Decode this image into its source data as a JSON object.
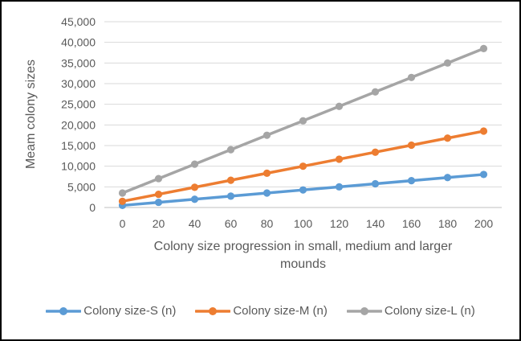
{
  "window": {
    "background_color": "#FFFFFF",
    "border_color": "#000000"
  },
  "chart_data": {
    "type": "line",
    "title": "",
    "xlabel": "Colony size progression in small, medium and larger mounds",
    "ylabel": "Meam colony sizes",
    "x_tick_labels": [
      "0",
      "20",
      "40",
      "60",
      "80",
      "100",
      "120",
      "140",
      "160",
      "180",
      "200"
    ],
    "y_tick_labels": [
      "0",
      "5,000",
      "10,000",
      "15,000",
      "20,000",
      "25,000",
      "30,000",
      "35,000",
      "40,000",
      "45,000"
    ],
    "ylim": [
      0,
      45000
    ],
    "ytick_step": 5000,
    "grid": true,
    "legend_position": "bottom",
    "categories": [
      0,
      20,
      40,
      60,
      80,
      100,
      120,
      140,
      160,
      180,
      200
    ],
    "series": [
      {
        "name": "Colony size-S (n)",
        "color": "#5B9BD5",
        "values": [
          500,
          1250,
          2000,
          2750,
          3500,
          4250,
          5000,
          5750,
          6500,
          7250,
          8000
        ]
      },
      {
        "name": "Colony size-M (n)",
        "color": "#ED7D31",
        "values": [
          1500,
          3200,
          4900,
          6600,
          8300,
          10000,
          11700,
          13400,
          15100,
          16800,
          18500
        ]
      },
      {
        "name": "Colony size-L (n)",
        "color": "#A5A5A5",
        "values": [
          3500,
          7000,
          10500,
          14000,
          17500,
          21000,
          24500,
          28000,
          31500,
          35000,
          38500
        ]
      }
    ],
    "colors": {
      "gridline": "#D9D9D9",
      "axis_line": "#BFBFBF",
      "text": "#595959"
    }
  }
}
